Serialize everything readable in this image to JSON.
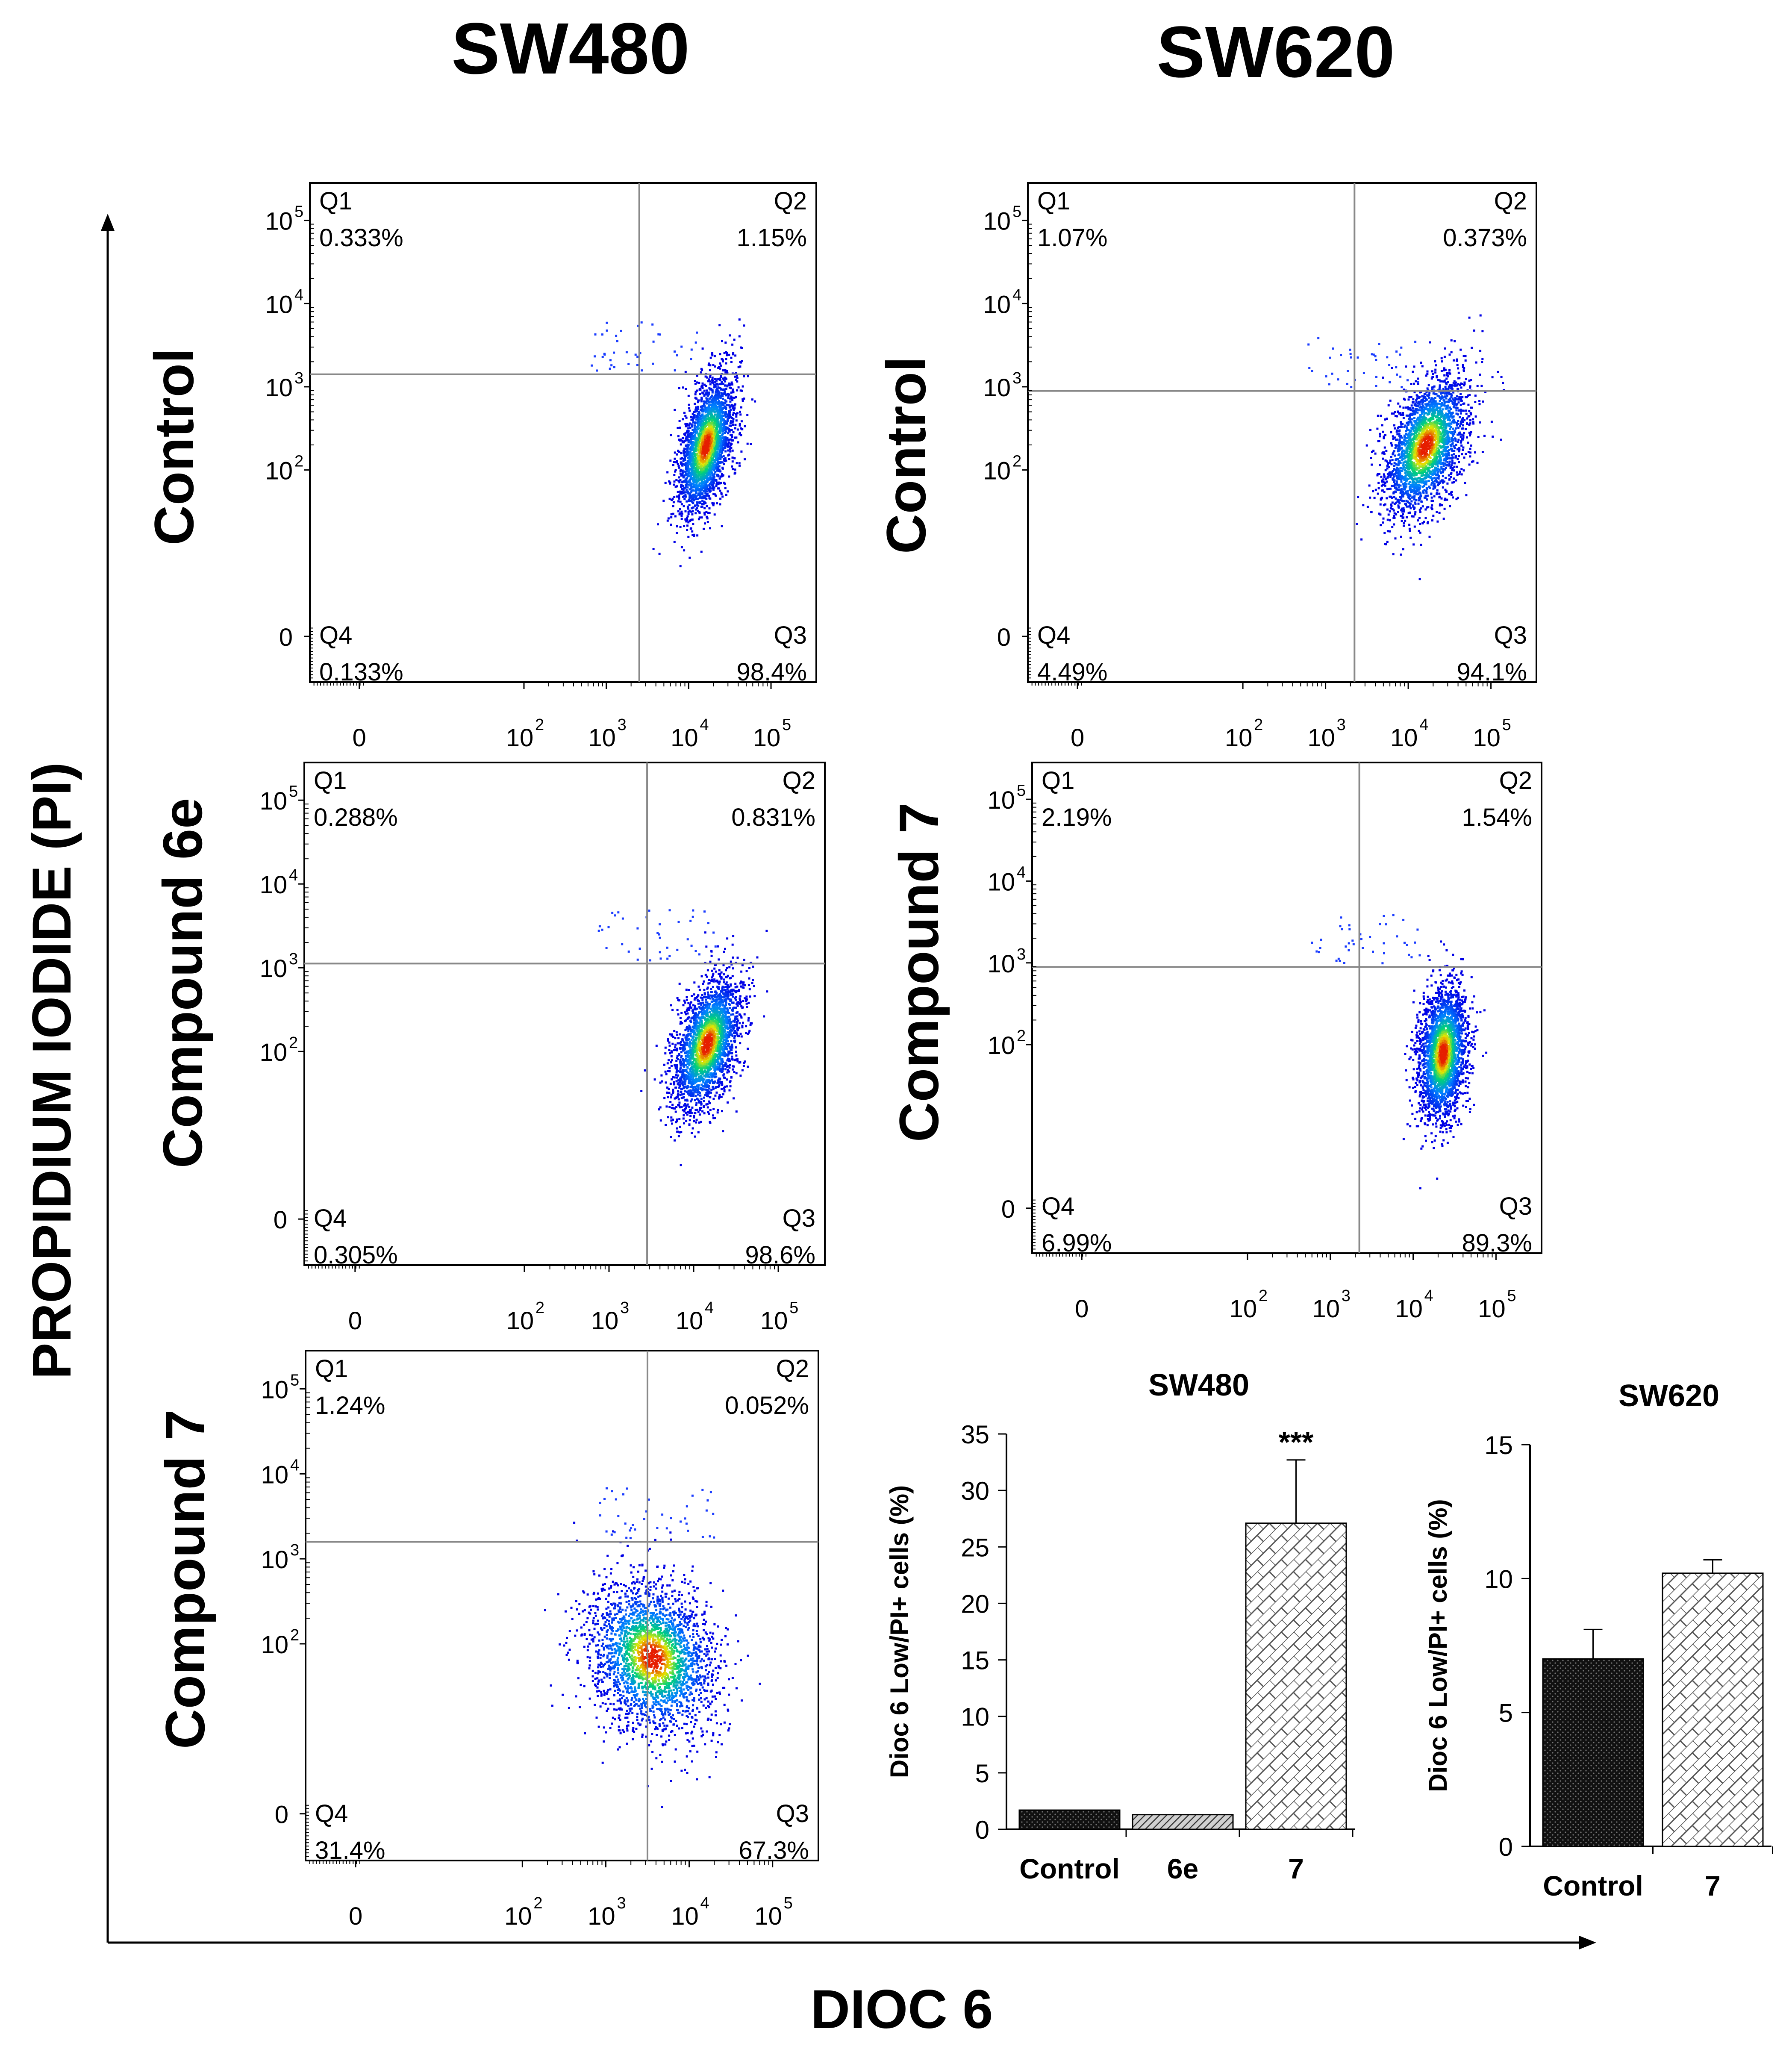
{
  "figure": {
    "y_axis_title": "PROPIDIUM IODIDE (PI)",
    "x_axis_title": "DIOC 6",
    "column_titles": [
      "SW480",
      "SW620"
    ]
  },
  "chart_data": [
    {
      "type": "scatter",
      "cell_line": "SW480",
      "treatment": "Control",
      "xlabel": "DIOC 6",
      "ylabel": "PROPIDIUM IODIDE (PI)",
      "quadrants": [
        {
          "name": "Q1",
          "percent": "0.333%"
        },
        {
          "name": "Q2",
          "percent": "1.15%"
        },
        {
          "name": "Q3",
          "percent": "98.4%"
        },
        {
          "name": "Q4",
          "percent": "0.133%"
        }
      ],
      "gate": {
        "x": 3.4,
        "y": 3.15
      },
      "population": {
        "cx": 4.2,
        "cy": 2.3,
        "sx": 0.17,
        "sy": 0.42,
        "rho": 0.5
      },
      "x_ticks": [
        "0",
        "10",
        "10",
        "10",
        "10"
      ],
      "x_tick_exponents": [
        "",
        "2",
        "3",
        "4",
        "5"
      ],
      "y_ticks": [
        "0",
        "10",
        "10",
        "10",
        "10"
      ],
      "y_tick_exponents": [
        "",
        "2",
        "3",
        "4",
        "5"
      ]
    },
    {
      "type": "scatter",
      "cell_line": "SW620",
      "treatment": "Control",
      "xlabel": "DIOC 6",
      "ylabel": "PROPIDIUM IODIDE (PI)",
      "quadrants": [
        {
          "name": "Q1",
          "percent": "1.07%"
        },
        {
          "name": "Q2",
          "percent": "0.373%"
        },
        {
          "name": "Q3",
          "percent": "94.1%"
        },
        {
          "name": "Q4",
          "percent": "4.49%"
        }
      ],
      "gate": {
        "x": 3.35,
        "y": 2.95
      },
      "population": {
        "cx": 4.2,
        "cy": 2.3,
        "sx": 0.25,
        "sy": 0.42,
        "rho": 0.45
      },
      "x_ticks": [
        "0",
        "10",
        "10",
        "10",
        "10"
      ],
      "x_tick_exponents": [
        "",
        "2",
        "3",
        "4",
        "5"
      ],
      "y_ticks": [
        "0",
        "10",
        "10",
        "10",
        "10"
      ],
      "y_tick_exponents": [
        "",
        "2",
        "3",
        "4",
        "5"
      ]
    },
    {
      "type": "scatter",
      "cell_line": "SW480",
      "treatment": "Compound 6e",
      "xlabel": "DIOC 6",
      "ylabel": "PROPIDIUM IODIDE (PI)",
      "quadrants": [
        {
          "name": "Q1",
          "percent": "0.288%"
        },
        {
          "name": "Q2",
          "percent": "0.831%"
        },
        {
          "name": "Q3",
          "percent": "98.6%"
        },
        {
          "name": "Q4",
          "percent": "0.305%"
        }
      ],
      "gate": {
        "x": 3.45,
        "y": 3.05
      },
      "population": {
        "cx": 4.15,
        "cy": 2.1,
        "sx": 0.2,
        "sy": 0.4,
        "rho": 0.45
      },
      "x_ticks": [
        "0",
        "10",
        "10",
        "10",
        "10"
      ],
      "x_tick_exponents": [
        "",
        "2",
        "3",
        "4",
        "5"
      ],
      "y_ticks": [
        "0",
        "10",
        "10",
        "10",
        "10"
      ],
      "y_tick_exponents": [
        "",
        "2",
        "3",
        "4",
        "5"
      ]
    },
    {
      "type": "scatter",
      "cell_line": "SW620",
      "treatment": "Compound 7",
      "xlabel": "DIOC 6",
      "ylabel": "PROPIDIUM IODIDE (PI)",
      "quadrants": [
        {
          "name": "Q1",
          "percent": "2.19%"
        },
        {
          "name": "Q2",
          "percent": "1.54%"
        },
        {
          "name": "Q3",
          "percent": "89.3%"
        },
        {
          "name": "Q4",
          "percent": "6.99%"
        }
      ],
      "gate": {
        "x": 3.35,
        "y": 2.95
      },
      "population": {
        "cx": 4.35,
        "cy": 1.9,
        "sx": 0.15,
        "sy": 0.42,
        "rho": 0.2
      },
      "x_ticks": [
        "0",
        "10",
        "10",
        "10",
        "10"
      ],
      "x_tick_exponents": [
        "",
        "2",
        "3",
        "4",
        "5"
      ],
      "y_ticks": [
        "0",
        "10",
        "10",
        "10",
        "10"
      ],
      "y_tick_exponents": [
        "",
        "2",
        "3",
        "4",
        "5"
      ]
    },
    {
      "type": "scatter",
      "cell_line": "SW480",
      "treatment": "Compound 7",
      "xlabel": "DIOC 6",
      "ylabel": "PROPIDIUM IODIDE (PI)",
      "quadrants": [
        {
          "name": "Q1",
          "percent": "1.24%"
        },
        {
          "name": "Q2",
          "percent": "0.052%"
        },
        {
          "name": "Q3",
          "percent": "67.3%"
        },
        {
          "name": "Q4",
          "percent": "31.4%"
        }
      ],
      "gate": {
        "x": 3.5,
        "y": 3.2
      },
      "population": {
        "cx": 3.55,
        "cy": 1.85,
        "sx": 0.38,
        "sy": 0.45,
        "rho": -0.2
      },
      "x_ticks": [
        "0",
        "10",
        "10",
        "10",
        "10"
      ],
      "x_tick_exponents": [
        "",
        "2",
        "3",
        "4",
        "5"
      ],
      "y_ticks": [
        "0",
        "10",
        "10",
        "10",
        "10"
      ],
      "y_tick_exponents": [
        "",
        "2",
        "3",
        "4",
        "5"
      ]
    },
    {
      "type": "bar",
      "title": "SW480",
      "ylabel": "Dioc 6 Low/PI+ cells (%)",
      "xlabel": "",
      "categories": [
        "Control",
        "6e",
        "7"
      ],
      "values": [
        1.7,
        1.3,
        27.1
      ],
      "errors": [
        0,
        0,
        5.6
      ],
      "significance": [
        "",
        "",
        "***"
      ],
      "patterns": [
        "dots-dark",
        "hatch-gray",
        "brick"
      ],
      "ylim": [
        0,
        35
      ],
      "yticks": [
        "0",
        "5",
        "10",
        "15",
        "20",
        "25",
        "30",
        "35"
      ]
    },
    {
      "type": "bar",
      "title": "SW620",
      "ylabel": "Dioc 6 Low/PI+ cells (%)",
      "xlabel": "",
      "categories": [
        "Control",
        "7"
      ],
      "values": [
        7.0,
        10.2
      ],
      "errors": [
        1.1,
        0.5
      ],
      "significance": [
        "",
        ""
      ],
      "patterns": [
        "dots-dark",
        "brick"
      ],
      "ylim": [
        0,
        15
      ],
      "yticks": [
        "0",
        "5",
        "10",
        "15"
      ]
    }
  ]
}
